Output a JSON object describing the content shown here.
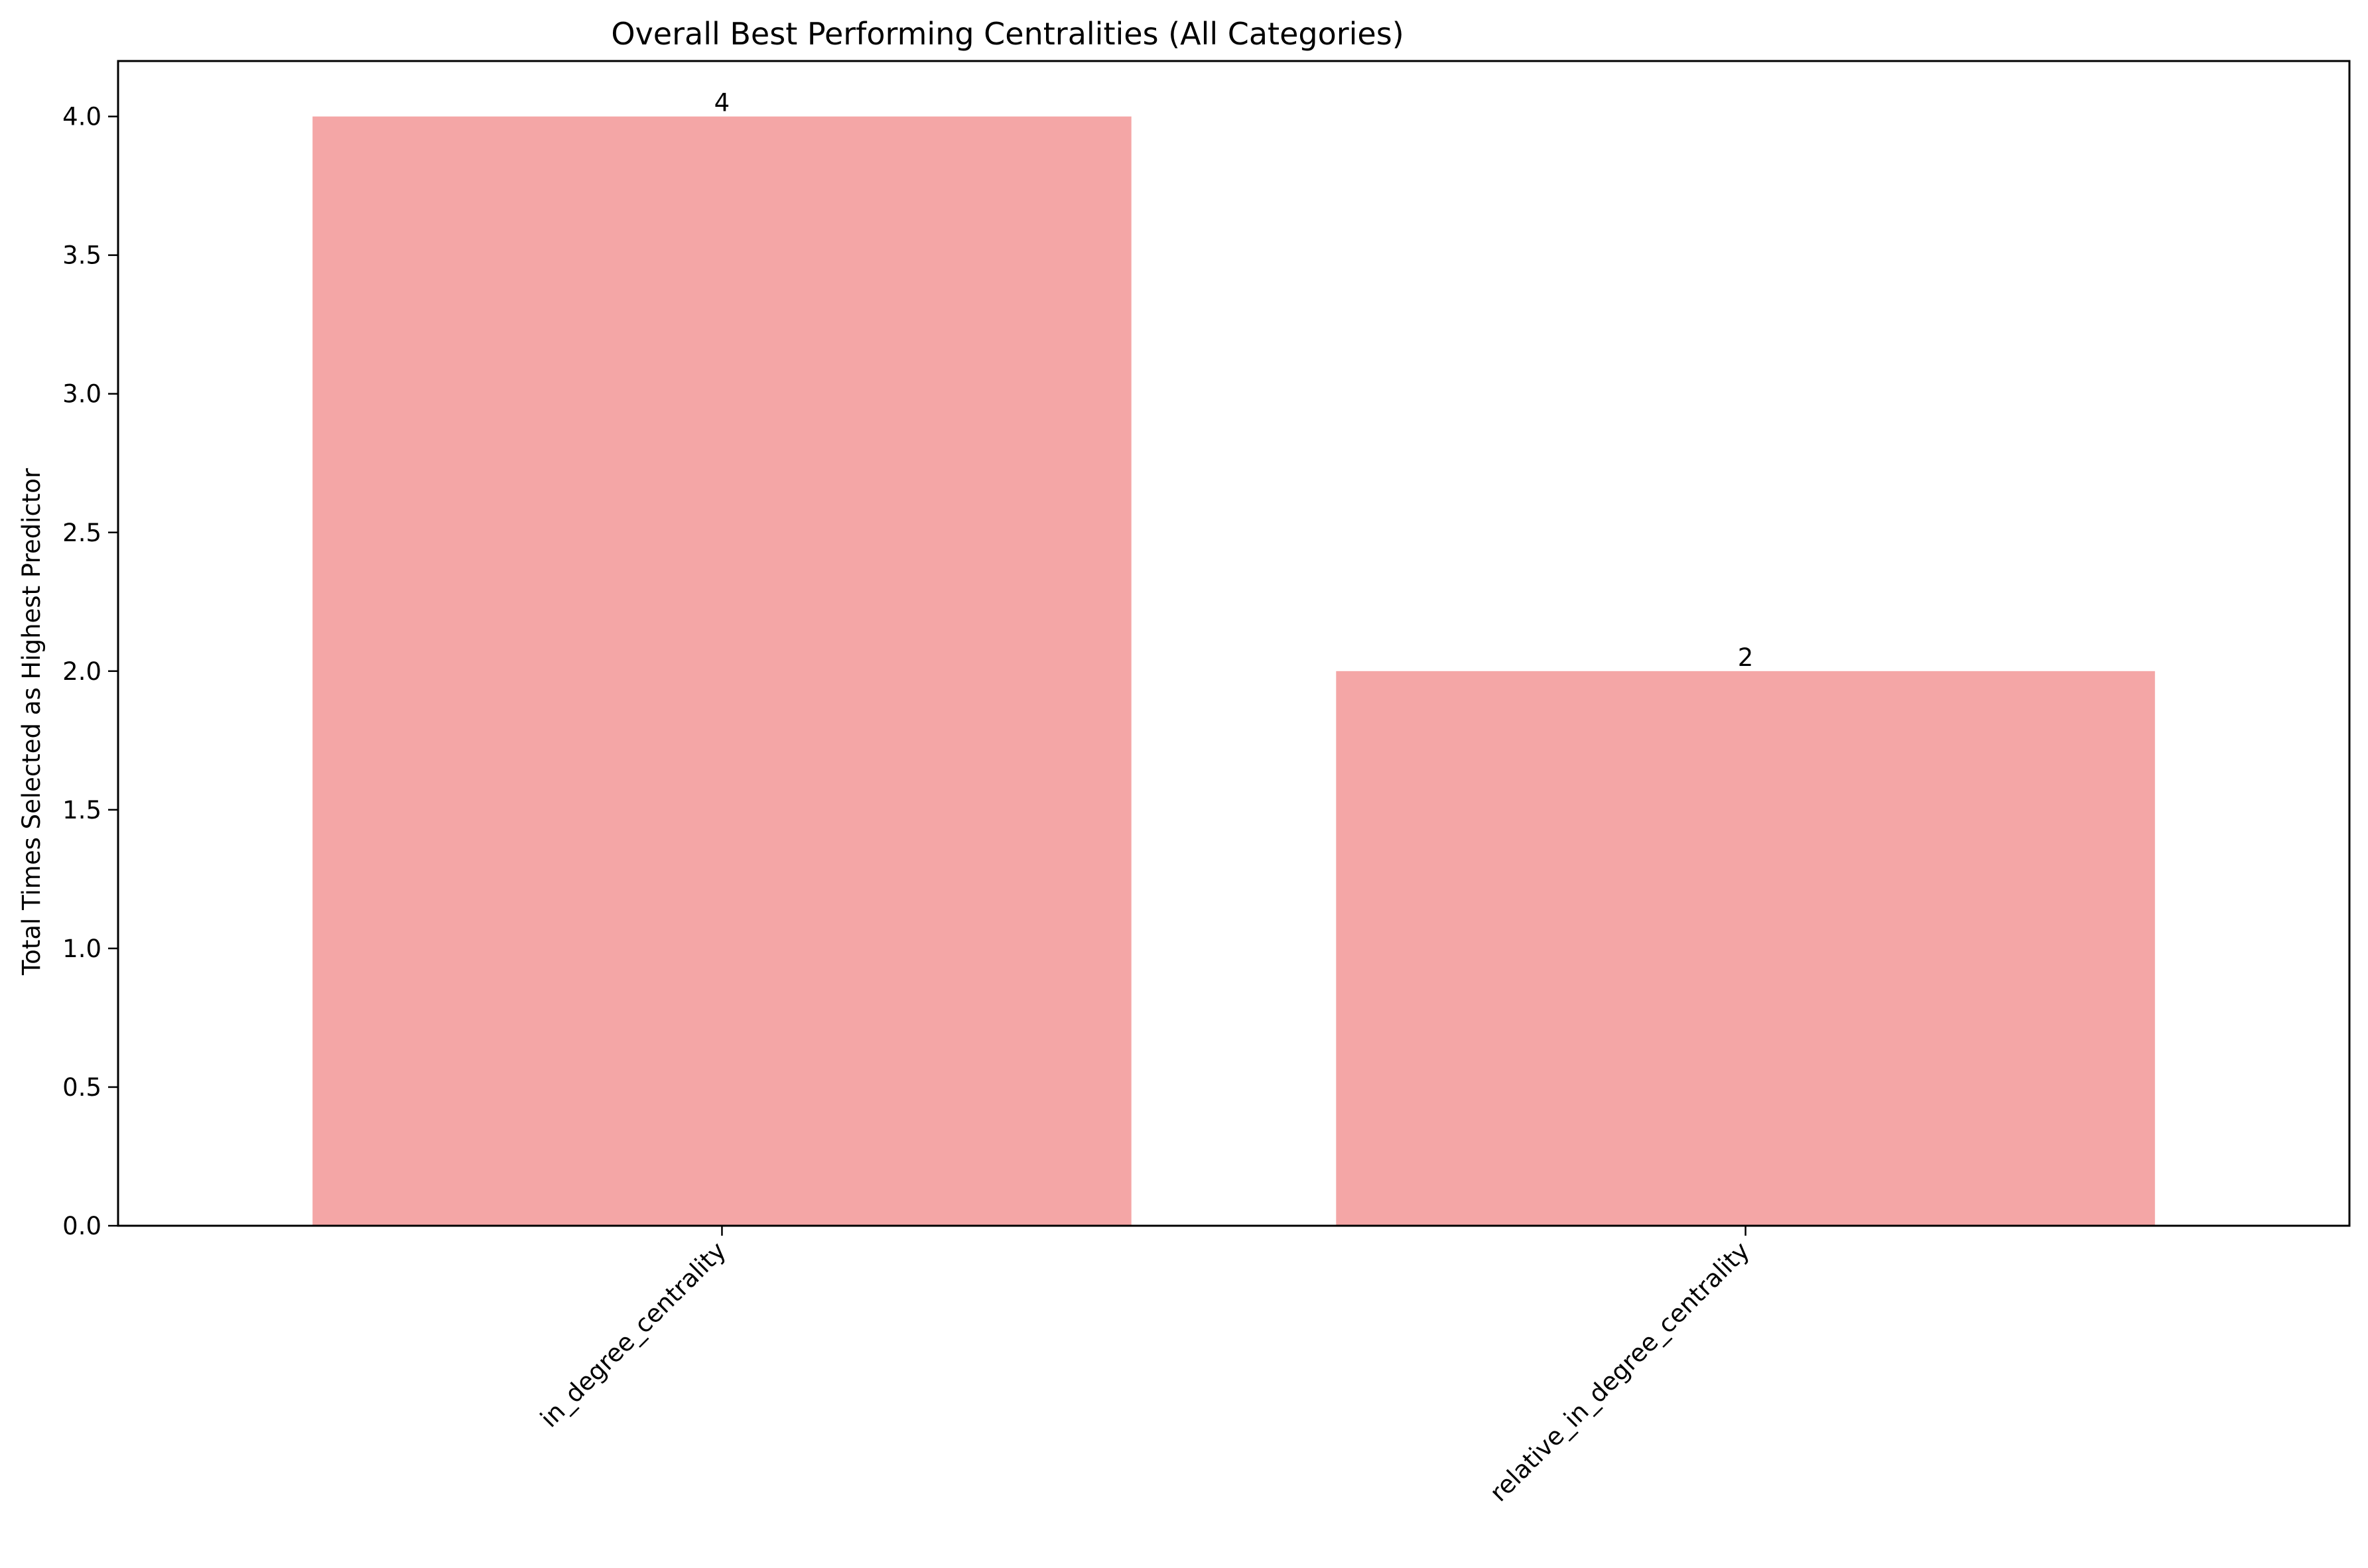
{
  "chart_data": {
    "type": "bar",
    "title": "Overall Best Performing Centralities (All Categories)",
    "xlabel": "",
    "ylabel": "Total Times Selected as Highest Predictor",
    "categories": [
      "in_degree_centrality",
      "relative_in_degree_centrality"
    ],
    "values": [
      4,
      2
    ],
    "data_labels": [
      "4",
      "2"
    ],
    "ylim": [
      0,
      4.2
    ],
    "yticks": [
      0.0,
      0.5,
      1.0,
      1.5,
      2.0,
      2.5,
      3.0,
      3.5,
      4.0
    ],
    "ytick_labels": [
      "0.0",
      "0.5",
      "1.0",
      "1.5",
      "2.0",
      "2.5",
      "3.0",
      "3.5",
      "4.0"
    ],
    "grid": false,
    "legend": "none",
    "bar_color": "#f4a6a6",
    "axis_color": "#000000"
  }
}
